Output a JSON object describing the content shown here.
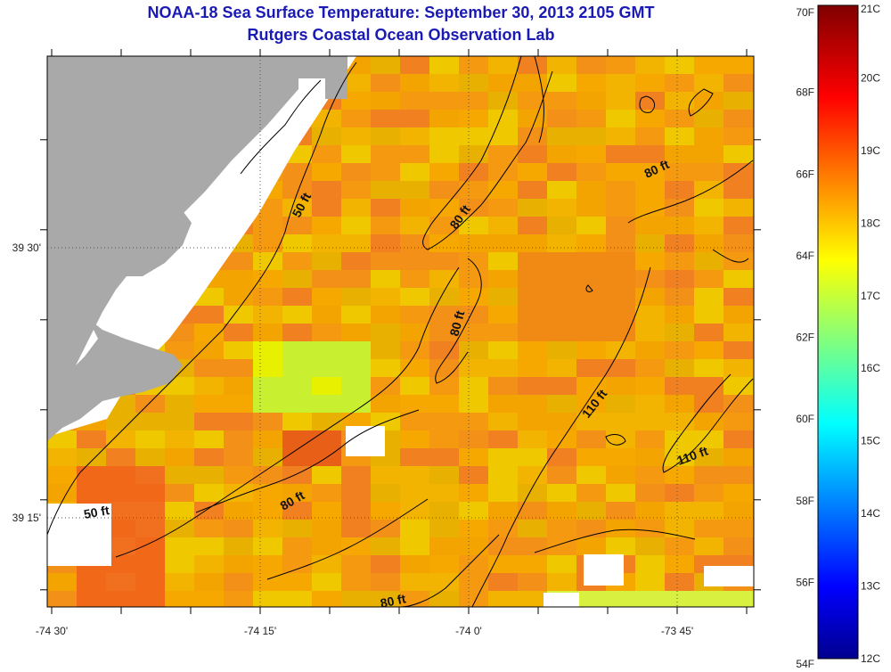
{
  "title": {
    "line1": "NOAA-18 Sea Surface Temperature:  September 30, 2013 2105 GMT",
    "line2": "Rutgers Coastal Ocean Observation Lab"
  },
  "map": {
    "x_ticks": [
      {
        "value": -74.5,
        "label": "-74 30'"
      },
      {
        "value": -74.25,
        "label": "-74 15'"
      },
      {
        "value": -74.0,
        "label": "-74 0'"
      },
      {
        "value": -73.75,
        "label": "-73 45'"
      }
    ],
    "y_ticks": [
      {
        "value": 39.5,
        "label": "39 30'"
      },
      {
        "value": 39.25,
        "label": "39 15'"
      }
    ],
    "contour_labels": [
      {
        "text": "50 ft"
      },
      {
        "text": "50 ft"
      },
      {
        "text": "80 ft"
      },
      {
        "text": "80 ft"
      },
      {
        "text": "80 ft"
      },
      {
        "text": "80 ft"
      },
      {
        "text": "80 ft"
      },
      {
        "text": "110 ft"
      },
      {
        "text": "110 ft"
      }
    ],
    "colors": {
      "land": "#a9a9a9",
      "no_data": "#ffffff",
      "contour": "#000000"
    }
  },
  "colorbar": {
    "celsius_labels": [
      "21C",
      "20C",
      "19C",
      "18C",
      "17C",
      "16C",
      "15C",
      "14C",
      "13C",
      "12C"
    ],
    "fahrenheit_labels": [
      "70F",
      "68F",
      "66F",
      "64F",
      "62F",
      "60F",
      "58F",
      "56F",
      "54F"
    ]
  }
}
